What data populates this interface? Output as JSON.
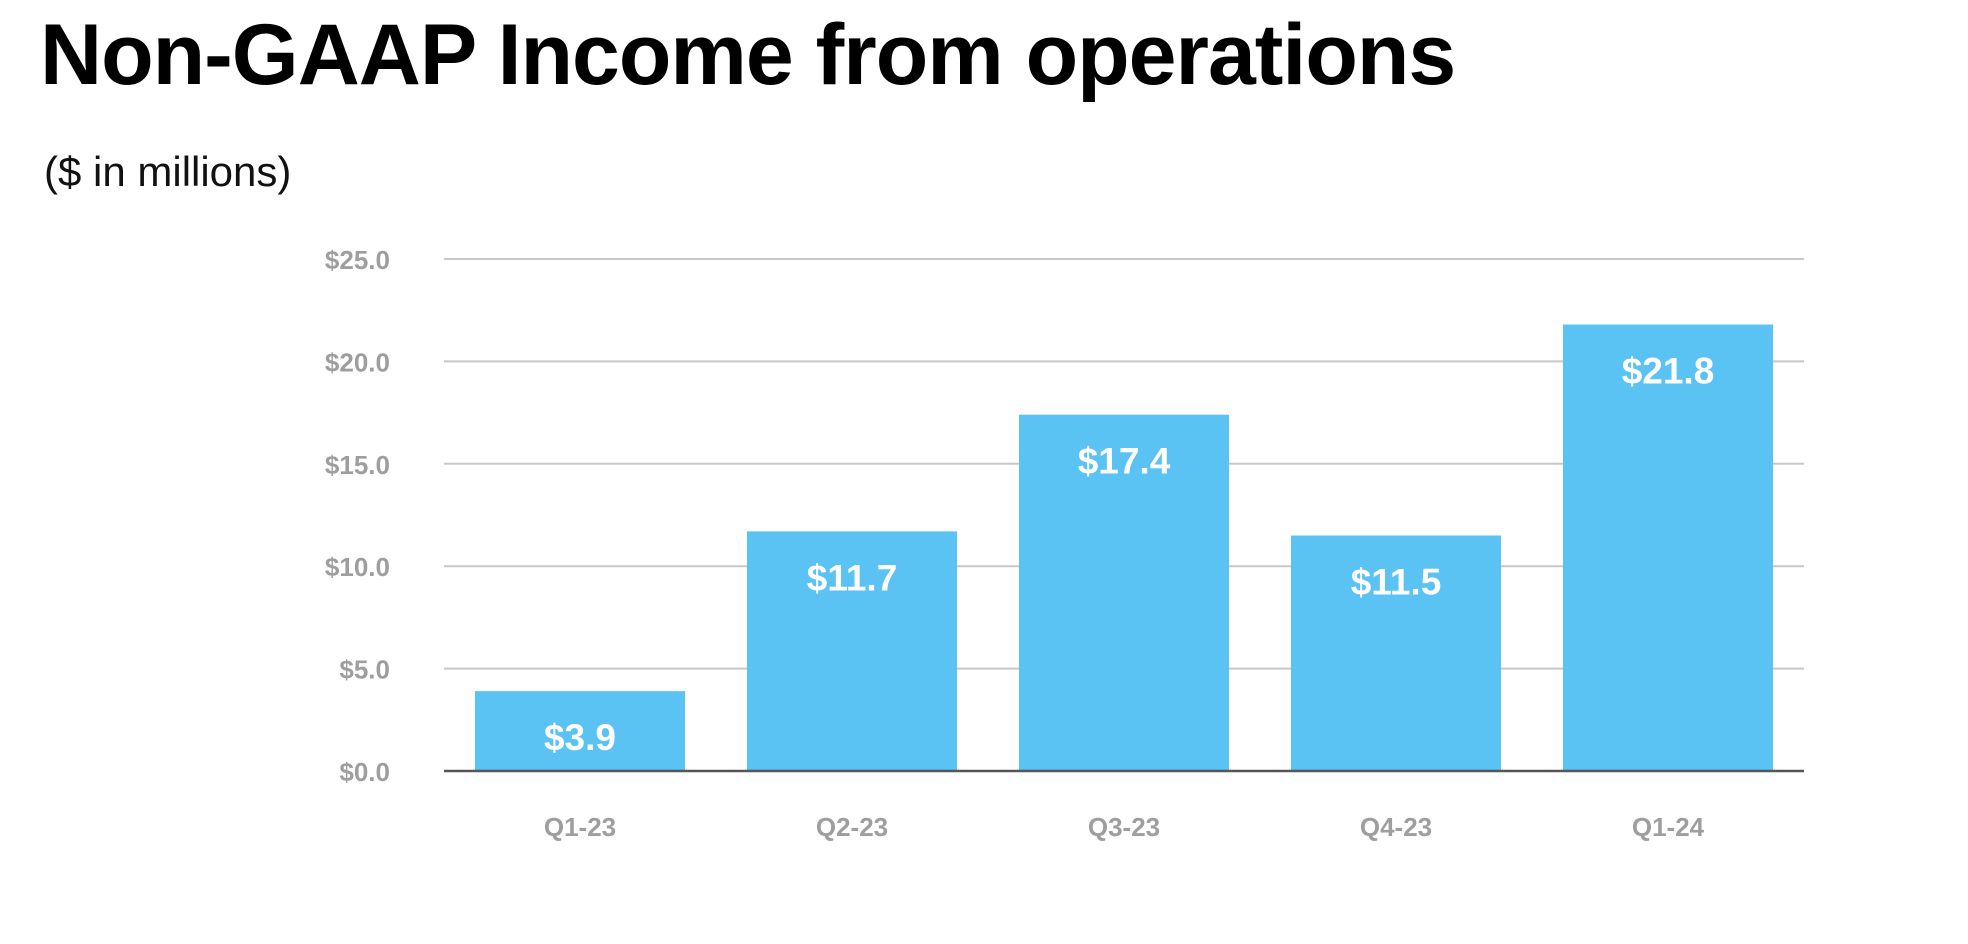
{
  "title": "Non-GAAP Income from operations",
  "subtitle": "($ in millions)",
  "colors": {
    "bar": "#5bc2f4",
    "grid": "#c8c8c8",
    "axis": "#555555",
    "tick_text": "#9e9e9e",
    "data_label": "#ffffff"
  },
  "chart_data": {
    "type": "bar",
    "title": "Non-GAAP Income from operations",
    "subtitle": "($ in millions)",
    "categories": [
      "Q1-23",
      "Q2-23",
      "Q3-23",
      "Q4-23",
      "Q1-24"
    ],
    "values": [
      3.9,
      11.7,
      17.4,
      11.5,
      21.8
    ],
    "data_labels": [
      "$3.9",
      "$11.7",
      "$17.4",
      "$11.5",
      "$21.8"
    ],
    "xlabel": "",
    "ylabel": "",
    "ylim": [
      0,
      25
    ],
    "yticks": [
      0,
      5,
      10,
      15,
      20,
      25
    ],
    "ytick_labels": [
      "$0.0",
      "$5.0",
      "$10.0",
      "$15.0",
      "$20.0",
      "$25.0"
    ],
    "grid": true,
    "legend": "none"
  }
}
